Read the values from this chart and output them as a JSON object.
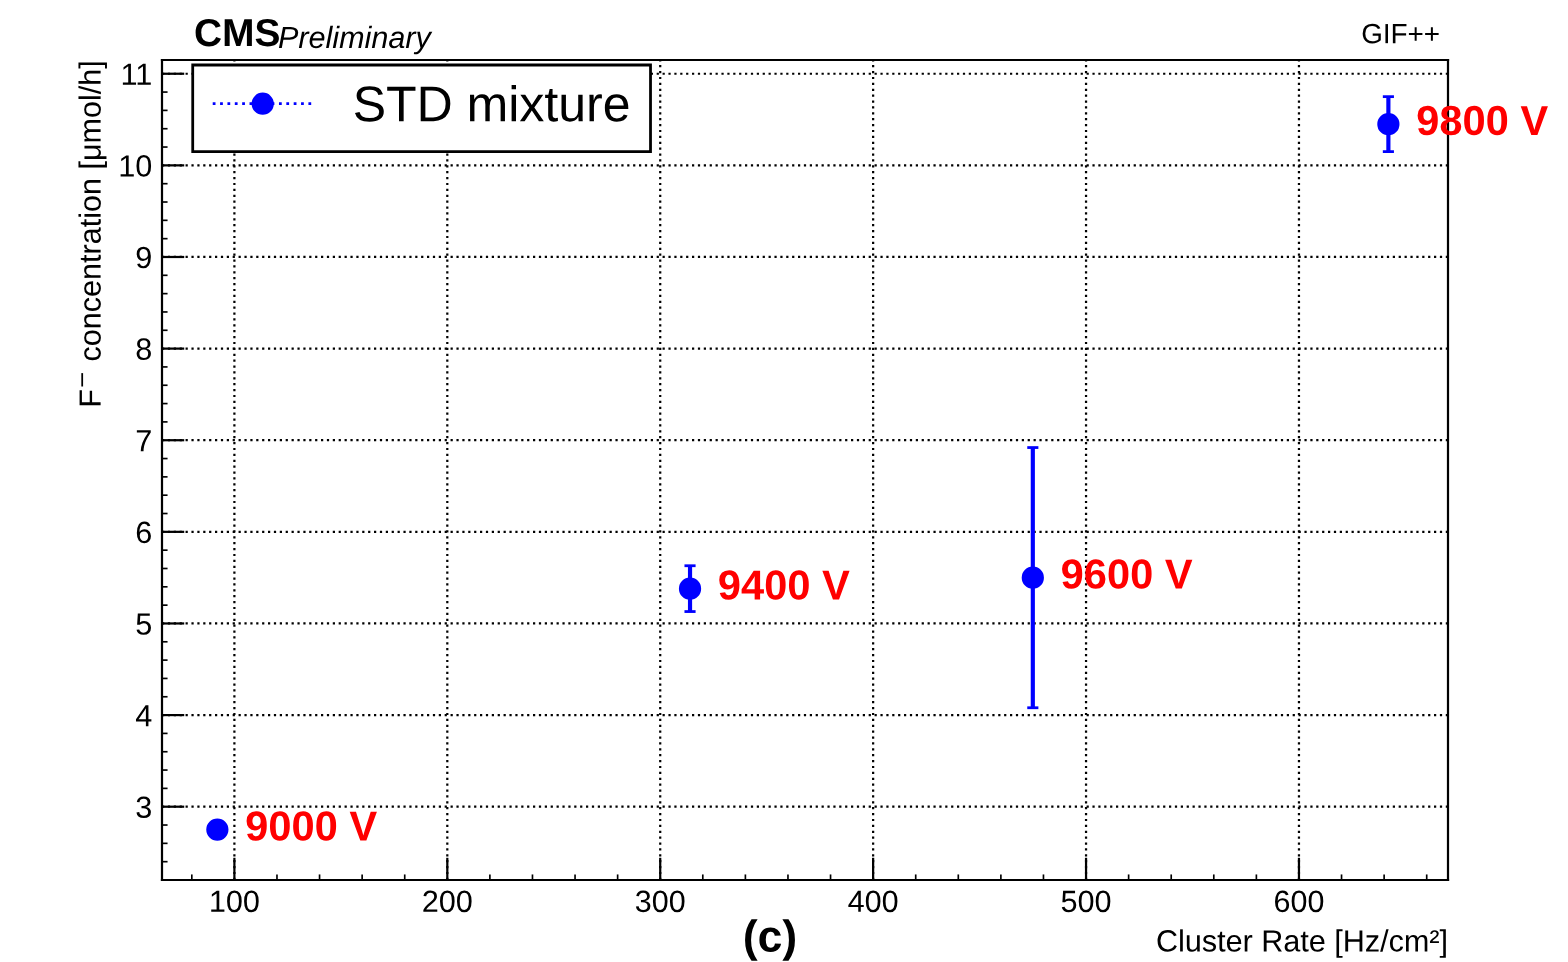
{
  "chart_data": {
    "type": "scatter",
    "xlabel": "Cluster Rate [Hz/cm²]",
    "ylabel": "F$^{−}$ concentration [μmol/h]",
    "x": [
      92,
      314,
      475,
      642
    ],
    "series": [
      {
        "name": "STD mixture",
        "color": "#0000ff",
        "values": [
          2.75,
          5.38,
          5.5,
          10.45
        ],
        "errors": [
          0.08,
          0.25,
          1.42,
          0.3
        ]
      }
    ],
    "xlim": [
      66,
      670
    ],
    "ylim": [
      2.2,
      11.15
    ],
    "xticks": [
      100,
      200,
      300,
      400,
      500,
      600
    ],
    "yticks": [
      3,
      4,
      5,
      6,
      7,
      8,
      9,
      10,
      11
    ],
    "grid": true,
    "legend": "top left",
    "marker": "circle",
    "annotations": [
      {
        "text": "9000 V",
        "x": 92,
        "y": 2.75
      },
      {
        "text": "9400 V",
        "x": 314,
        "y": 5.38
      },
      {
        "text": "9600 V",
        "x": 475,
        "y": 5.5
      },
      {
        "text": "9800 V",
        "x": 642,
        "y": 10.45
      },
      "CMS",
      "Preliminary",
      "GIF++",
      "(c)"
    ]
  }
}
